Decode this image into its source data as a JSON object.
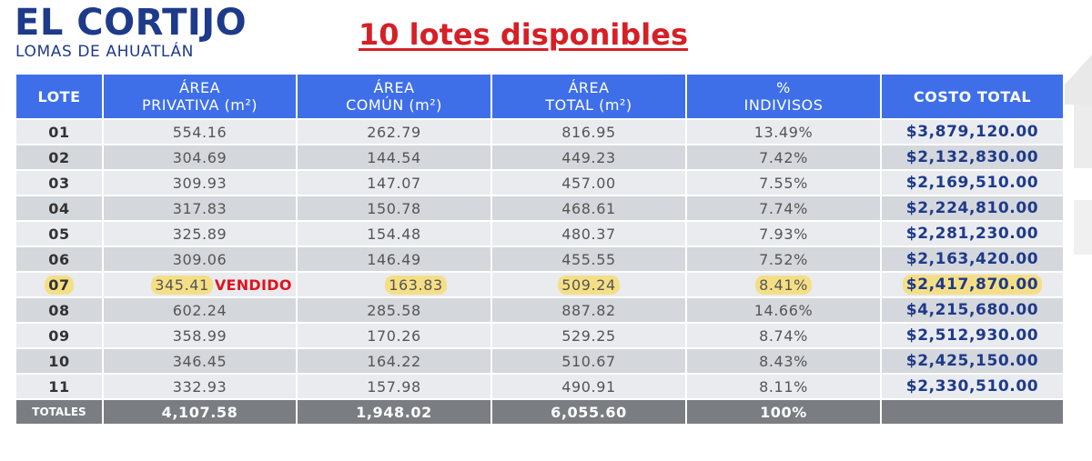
{
  "brand": {
    "title": "EL CORTIJO",
    "subtitle": "LOMAS DE AHUATLÁN"
  },
  "headline": "10 lotes disponibles",
  "colors": {
    "brand": "#1e3a8a",
    "header_bg": "#3e6fe8",
    "headline": "#d61f26",
    "highlight": "#f5df86",
    "totals_bg": "#7a7d82"
  },
  "table": {
    "headers": {
      "lote": "LOTE",
      "privativa_1": "ÁREA",
      "privativa_2": "PRIVATIVA (m²)",
      "comun_1": "ÁREA",
      "comun_2": "COMÚN (m²)",
      "total_1": "ÁREA",
      "total_2": "TOTAL (m²)",
      "indivisos_1": "%",
      "indivisos_2": "INDIVISOS",
      "costo": "COSTO TOTAL"
    },
    "rows": [
      {
        "lote": "01",
        "privativa": "554.16",
        "comun": "262.79",
        "total": "816.95",
        "indivisos": "13.49%",
        "costo": "$3,879,120.00"
      },
      {
        "lote": "02",
        "privativa": "304.69",
        "comun": "144.54",
        "total": "449.23",
        "indivisos": "7.42%",
        "costo": "$2,132,830.00"
      },
      {
        "lote": "03",
        "privativa": "309.93",
        "comun": "147.07",
        "total": "457.00",
        "indivisos": "7.55%",
        "costo": "$2,169,510.00"
      },
      {
        "lote": "04",
        "privativa": "317.83",
        "comun": "150.78",
        "total": "468.61",
        "indivisos": "7.74%",
        "costo": "$2,224,810.00"
      },
      {
        "lote": "05",
        "privativa": "325.89",
        "comun": "154.48",
        "total": "480.37",
        "indivisos": "7.93%",
        "costo": "$2,281,230.00"
      },
      {
        "lote": "06",
        "privativa": "309.06",
        "comun": "146.49",
        "total": "455.55",
        "indivisos": "7.52%",
        "costo": "$2,163,420.00"
      },
      {
        "lote": "07",
        "privativa": "345.41",
        "comun": "163.83",
        "total": "509.24",
        "indivisos": "8.41%",
        "costo": "$2,417,870.00",
        "status": "VENDIDO"
      },
      {
        "lote": "08",
        "privativa": "602.24",
        "comun": "285.58",
        "total": "887.82",
        "indivisos": "14.66%",
        "costo": "$4,215,680.00"
      },
      {
        "lote": "09",
        "privativa": "358.99",
        "comun": "170.26",
        "total": "529.25",
        "indivisos": "8.74%",
        "costo": "$2,512,930.00"
      },
      {
        "lote": "10",
        "privativa": "346.45",
        "comun": "164.22",
        "total": "510.67",
        "indivisos": "8.43%",
        "costo": "$2,425,150.00"
      },
      {
        "lote": "11",
        "privativa": "332.93",
        "comun": "157.98",
        "total": "490.91",
        "indivisos": "8.11%",
        "costo": "$2,330,510.00"
      }
    ],
    "totals": {
      "label": "TOTALES",
      "privativa": "4,107.58",
      "comun": "1,948.02",
      "total": "6,055.60",
      "indivisos": "100%",
      "costo": ""
    }
  }
}
